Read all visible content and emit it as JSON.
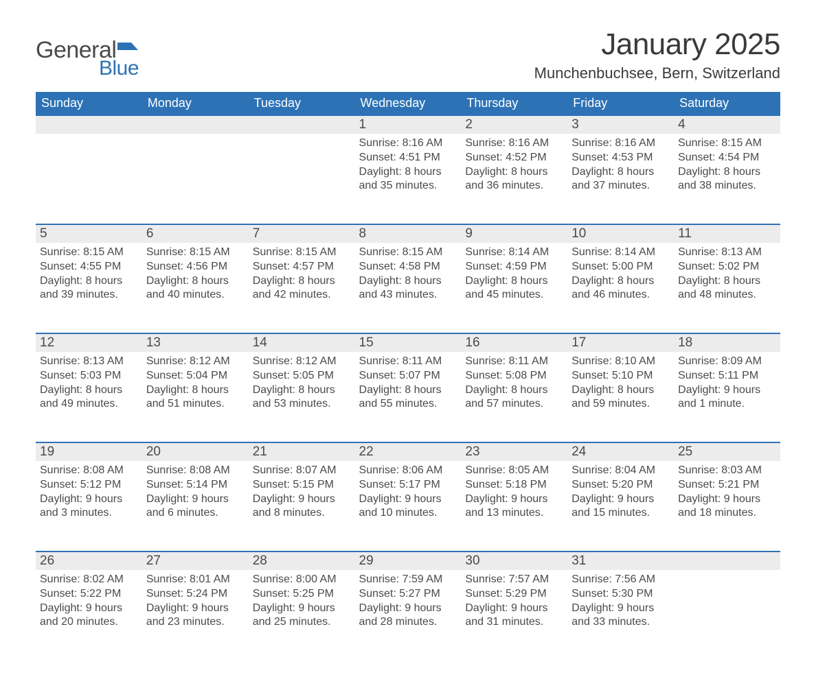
{
  "brand": {
    "word1": "General",
    "word2": "Blue",
    "flag_color": "#2d72b5"
  },
  "header": {
    "title": "January 2025",
    "location": "Munchenbuchsee, Bern, Switzerland"
  },
  "style": {
    "header_bg": "#2d72b5",
    "header_text": "#ffffff",
    "daynum_bg": "#ececec",
    "row_border": "#2d72b5",
    "text_color": "#4a4a4a",
    "page_bg": "#ffffff",
    "title_fontsize": 44,
    "location_fontsize": 22,
    "weekday_fontsize": 18,
    "daynum_fontsize": 19,
    "body_fontsize": 16
  },
  "weekdays": [
    "Sunday",
    "Monday",
    "Tuesday",
    "Wednesday",
    "Thursday",
    "Friday",
    "Saturday"
  ],
  "weeks": [
    [
      null,
      null,
      null,
      {
        "n": "1",
        "sunrise": "Sunrise: 8:16 AM",
        "sunset": "Sunset: 4:51 PM",
        "dl1": "Daylight: 8 hours",
        "dl2": "and 35 minutes."
      },
      {
        "n": "2",
        "sunrise": "Sunrise: 8:16 AM",
        "sunset": "Sunset: 4:52 PM",
        "dl1": "Daylight: 8 hours",
        "dl2": "and 36 minutes."
      },
      {
        "n": "3",
        "sunrise": "Sunrise: 8:16 AM",
        "sunset": "Sunset: 4:53 PM",
        "dl1": "Daylight: 8 hours",
        "dl2": "and 37 minutes."
      },
      {
        "n": "4",
        "sunrise": "Sunrise: 8:15 AM",
        "sunset": "Sunset: 4:54 PM",
        "dl1": "Daylight: 8 hours",
        "dl2": "and 38 minutes."
      }
    ],
    [
      {
        "n": "5",
        "sunrise": "Sunrise: 8:15 AM",
        "sunset": "Sunset: 4:55 PM",
        "dl1": "Daylight: 8 hours",
        "dl2": "and 39 minutes."
      },
      {
        "n": "6",
        "sunrise": "Sunrise: 8:15 AM",
        "sunset": "Sunset: 4:56 PM",
        "dl1": "Daylight: 8 hours",
        "dl2": "and 40 minutes."
      },
      {
        "n": "7",
        "sunrise": "Sunrise: 8:15 AM",
        "sunset": "Sunset: 4:57 PM",
        "dl1": "Daylight: 8 hours",
        "dl2": "and 42 minutes."
      },
      {
        "n": "8",
        "sunrise": "Sunrise: 8:15 AM",
        "sunset": "Sunset: 4:58 PM",
        "dl1": "Daylight: 8 hours",
        "dl2": "and 43 minutes."
      },
      {
        "n": "9",
        "sunrise": "Sunrise: 8:14 AM",
        "sunset": "Sunset: 4:59 PM",
        "dl1": "Daylight: 8 hours",
        "dl2": "and 45 minutes."
      },
      {
        "n": "10",
        "sunrise": "Sunrise: 8:14 AM",
        "sunset": "Sunset: 5:00 PM",
        "dl1": "Daylight: 8 hours",
        "dl2": "and 46 minutes."
      },
      {
        "n": "11",
        "sunrise": "Sunrise: 8:13 AM",
        "sunset": "Sunset: 5:02 PM",
        "dl1": "Daylight: 8 hours",
        "dl2": "and 48 minutes."
      }
    ],
    [
      {
        "n": "12",
        "sunrise": "Sunrise: 8:13 AM",
        "sunset": "Sunset: 5:03 PM",
        "dl1": "Daylight: 8 hours",
        "dl2": "and 49 minutes."
      },
      {
        "n": "13",
        "sunrise": "Sunrise: 8:12 AM",
        "sunset": "Sunset: 5:04 PM",
        "dl1": "Daylight: 8 hours",
        "dl2": "and 51 minutes."
      },
      {
        "n": "14",
        "sunrise": "Sunrise: 8:12 AM",
        "sunset": "Sunset: 5:05 PM",
        "dl1": "Daylight: 8 hours",
        "dl2": "and 53 minutes."
      },
      {
        "n": "15",
        "sunrise": "Sunrise: 8:11 AM",
        "sunset": "Sunset: 5:07 PM",
        "dl1": "Daylight: 8 hours",
        "dl2": "and 55 minutes."
      },
      {
        "n": "16",
        "sunrise": "Sunrise: 8:11 AM",
        "sunset": "Sunset: 5:08 PM",
        "dl1": "Daylight: 8 hours",
        "dl2": "and 57 minutes."
      },
      {
        "n": "17",
        "sunrise": "Sunrise: 8:10 AM",
        "sunset": "Sunset: 5:10 PM",
        "dl1": "Daylight: 8 hours",
        "dl2": "and 59 minutes."
      },
      {
        "n": "18",
        "sunrise": "Sunrise: 8:09 AM",
        "sunset": "Sunset: 5:11 PM",
        "dl1": "Daylight: 9 hours",
        "dl2": "and 1 minute."
      }
    ],
    [
      {
        "n": "19",
        "sunrise": "Sunrise: 8:08 AM",
        "sunset": "Sunset: 5:12 PM",
        "dl1": "Daylight: 9 hours",
        "dl2": "and 3 minutes."
      },
      {
        "n": "20",
        "sunrise": "Sunrise: 8:08 AM",
        "sunset": "Sunset: 5:14 PM",
        "dl1": "Daylight: 9 hours",
        "dl2": "and 6 minutes."
      },
      {
        "n": "21",
        "sunrise": "Sunrise: 8:07 AM",
        "sunset": "Sunset: 5:15 PM",
        "dl1": "Daylight: 9 hours",
        "dl2": "and 8 minutes."
      },
      {
        "n": "22",
        "sunrise": "Sunrise: 8:06 AM",
        "sunset": "Sunset: 5:17 PM",
        "dl1": "Daylight: 9 hours",
        "dl2": "and 10 minutes."
      },
      {
        "n": "23",
        "sunrise": "Sunrise: 8:05 AM",
        "sunset": "Sunset: 5:18 PM",
        "dl1": "Daylight: 9 hours",
        "dl2": "and 13 minutes."
      },
      {
        "n": "24",
        "sunrise": "Sunrise: 8:04 AM",
        "sunset": "Sunset: 5:20 PM",
        "dl1": "Daylight: 9 hours",
        "dl2": "and 15 minutes."
      },
      {
        "n": "25",
        "sunrise": "Sunrise: 8:03 AM",
        "sunset": "Sunset: 5:21 PM",
        "dl1": "Daylight: 9 hours",
        "dl2": "and 18 minutes."
      }
    ],
    [
      {
        "n": "26",
        "sunrise": "Sunrise: 8:02 AM",
        "sunset": "Sunset: 5:22 PM",
        "dl1": "Daylight: 9 hours",
        "dl2": "and 20 minutes."
      },
      {
        "n": "27",
        "sunrise": "Sunrise: 8:01 AM",
        "sunset": "Sunset: 5:24 PM",
        "dl1": "Daylight: 9 hours",
        "dl2": "and 23 minutes."
      },
      {
        "n": "28",
        "sunrise": "Sunrise: 8:00 AM",
        "sunset": "Sunset: 5:25 PM",
        "dl1": "Daylight: 9 hours",
        "dl2": "and 25 minutes."
      },
      {
        "n": "29",
        "sunrise": "Sunrise: 7:59 AM",
        "sunset": "Sunset: 5:27 PM",
        "dl1": "Daylight: 9 hours",
        "dl2": "and 28 minutes."
      },
      {
        "n": "30",
        "sunrise": "Sunrise: 7:57 AM",
        "sunset": "Sunset: 5:29 PM",
        "dl1": "Daylight: 9 hours",
        "dl2": "and 31 minutes."
      },
      {
        "n": "31",
        "sunrise": "Sunrise: 7:56 AM",
        "sunset": "Sunset: 5:30 PM",
        "dl1": "Daylight: 9 hours",
        "dl2": "and 33 minutes."
      },
      null
    ]
  ]
}
